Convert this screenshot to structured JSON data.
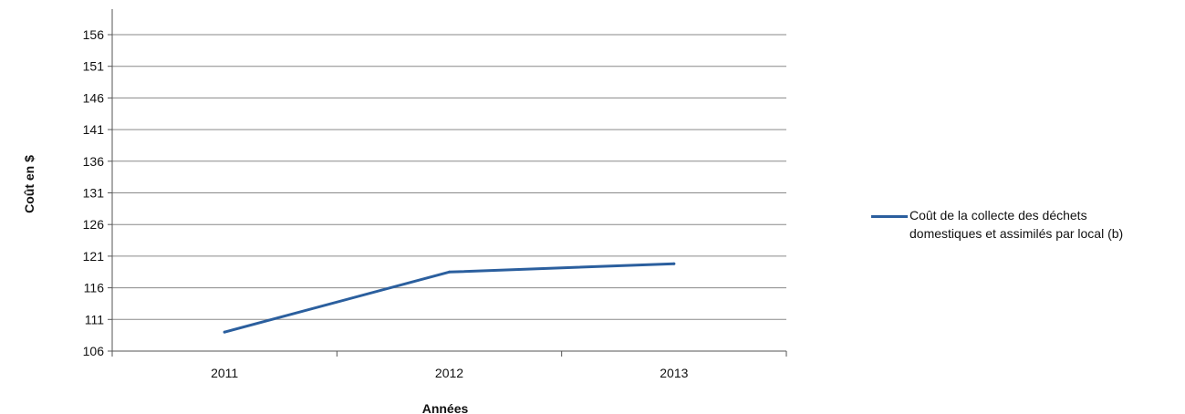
{
  "chart_data": {
    "type": "line",
    "xlabel": "Années",
    "ylabel": "Coût en $",
    "categories": [
      "2011",
      "2012",
      "2013"
    ],
    "yticks": [
      "156",
      "151",
      "146",
      "141",
      "136",
      "131",
      "126",
      "121",
      "116",
      "111",
      "106"
    ],
    "ylim": [
      106,
      156
    ],
    "grid": true,
    "legend_position": "right",
    "series": [
      {
        "name": "Coût de la collecte des déchets\ndomestiques et assimilés par local (b)",
        "values": [
          109,
          118.5,
          119.8
        ],
        "color": "#2b5f9e"
      }
    ]
  }
}
